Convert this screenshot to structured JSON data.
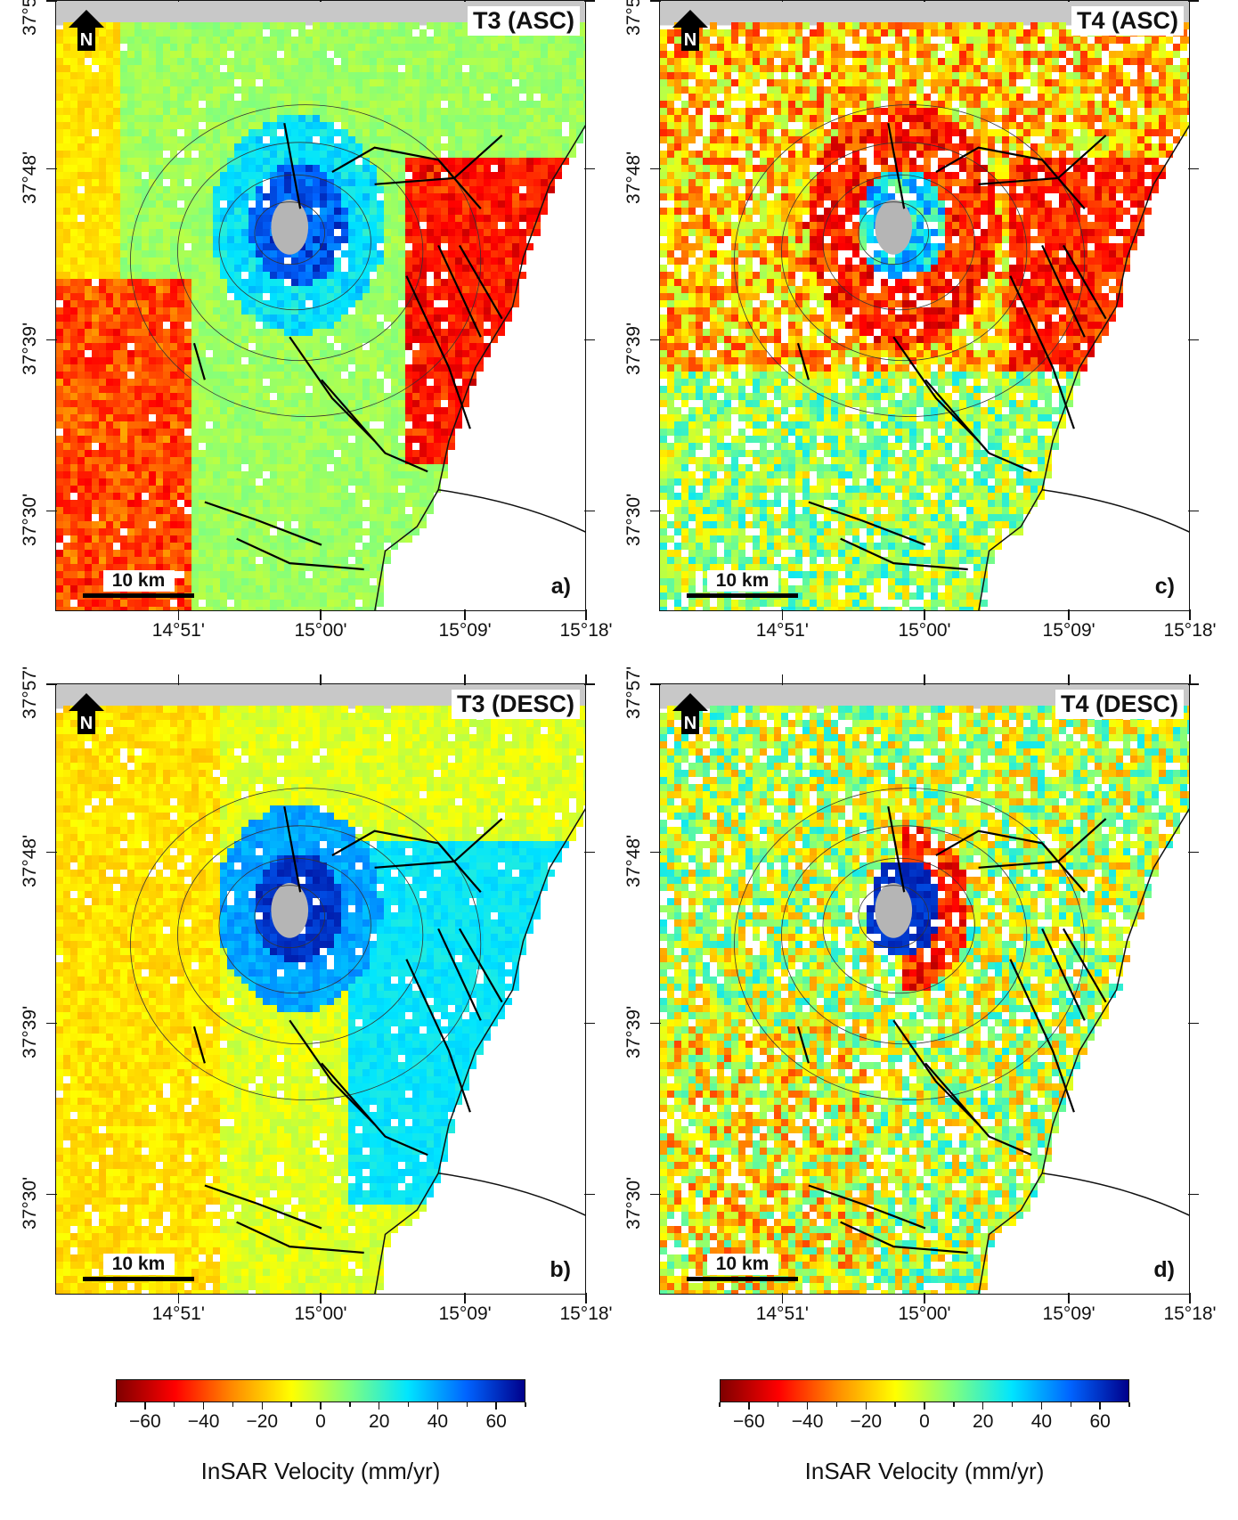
{
  "panels": [
    {
      "id": "a",
      "title": "T3 (ASC)",
      "letter": "a)",
      "scale_label": "10 km",
      "north_label": "N",
      "pattern": "asc3"
    },
    {
      "id": "c",
      "title": "T4 (ASC)",
      "letter": "c)",
      "scale_label": "10 km",
      "north_label": "N",
      "pattern": "asc4"
    },
    {
      "id": "b",
      "title": "T3 (DESC)",
      "letter": "b)",
      "scale_label": "10 km",
      "north_label": "N",
      "pattern": "desc3"
    },
    {
      "id": "d",
      "title": "T4 (DESC)",
      "letter": "d)",
      "scale_label": "10 km",
      "north_label": "N",
      "pattern": "desc4"
    }
  ],
  "lon_labels": [
    "14°51'",
    "15°00'",
    "15°09'",
    "15°18'"
  ],
  "lat_labels": [
    "37°57'",
    "37°48'",
    "37°39'",
    "37°30'"
  ],
  "colorbar": {
    "title": "InSAR Velocity (mm/yr)",
    "ticks": [
      "−60",
      "−40",
      "−20",
      "0",
      "20",
      "40",
      "60"
    ],
    "range": [
      -70,
      70
    ],
    "colors": [
      "#7f0000",
      "#ff0000",
      "#ff8c00",
      "#ffff00",
      "#7fff7f",
      "#00e5ff",
      "#0064ff",
      "#00008b"
    ]
  }
}
